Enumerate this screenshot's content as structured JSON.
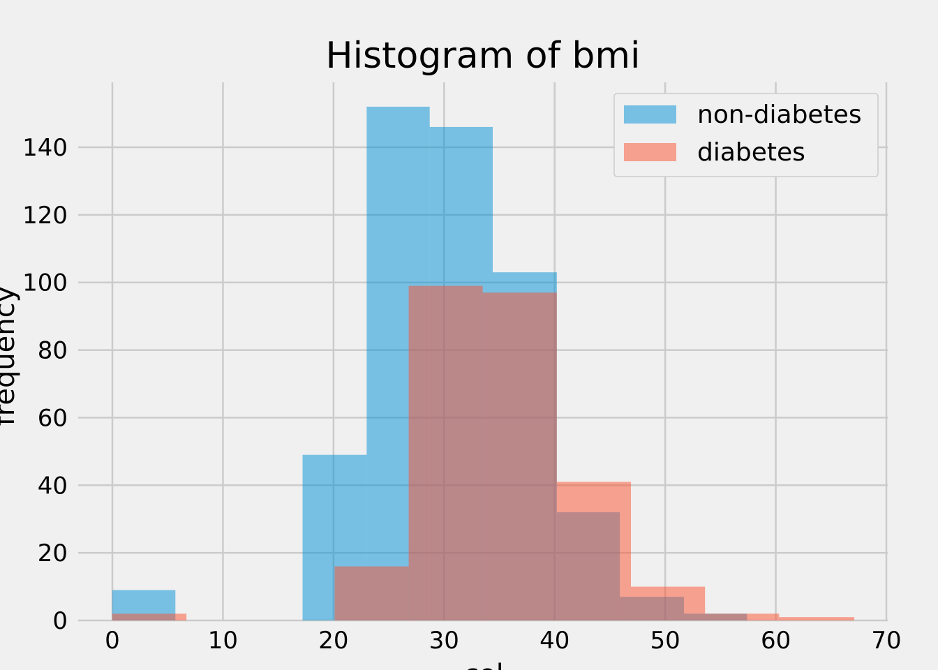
{
  "chart_data": {
    "type": "bar",
    "title": "Histogram of bmi",
    "xlabel": "col",
    "ylabel": "frequency",
    "xlim": [
      0,
      70
    ],
    "ylim": [
      0,
      158
    ],
    "xticks": [
      0,
      10,
      20,
      30,
      40,
      50,
      60,
      70
    ],
    "yticks": [
      0,
      20,
      40,
      60,
      80,
      100,
      120,
      140
    ],
    "grid": true,
    "legend_position": "top-right",
    "colors": {
      "non-diabetes": "#008fd5",
      "diabetes": "#fc4f30",
      "background": "#f0f0f0",
      "grid": "#cbcbcb"
    },
    "series": [
      {
        "name": "non-diabetes",
        "color": "#008fd5",
        "bins": [
          {
            "x0": 0.0,
            "x1": 5.7,
            "count": 9
          },
          {
            "x0": 5.7,
            "x1": 11.5,
            "count": 0
          },
          {
            "x0": 11.5,
            "x1": 17.2,
            "count": 0
          },
          {
            "x0": 17.2,
            "x1": 23.0,
            "count": 49
          },
          {
            "x0": 23.0,
            "x1": 28.7,
            "count": 152
          },
          {
            "x0": 28.7,
            "x1": 34.4,
            "count": 146
          },
          {
            "x0": 34.4,
            "x1": 40.2,
            "count": 103
          },
          {
            "x0": 40.2,
            "x1": 45.9,
            "count": 32
          },
          {
            "x0": 45.9,
            "x1": 51.7,
            "count": 7
          },
          {
            "x0": 51.7,
            "x1": 57.4,
            "count": 2
          }
        ]
      },
      {
        "name": "diabetes",
        "color": "#fc4f30",
        "bins": [
          {
            "x0": 0.0,
            "x1": 6.7,
            "count": 2
          },
          {
            "x0": 6.7,
            "x1": 13.4,
            "count": 0
          },
          {
            "x0": 13.4,
            "x1": 20.1,
            "count": 0
          },
          {
            "x0": 20.1,
            "x1": 26.8,
            "count": 16
          },
          {
            "x0": 26.8,
            "x1": 33.5,
            "count": 99
          },
          {
            "x0": 33.5,
            "x1": 40.2,
            "count": 97
          },
          {
            "x0": 40.2,
            "x1": 46.9,
            "count": 41
          },
          {
            "x0": 46.9,
            "x1": 53.6,
            "count": 10
          },
          {
            "x0": 53.6,
            "x1": 60.3,
            "count": 2
          },
          {
            "x0": 60.3,
            "x1": 67.1,
            "count": 1
          }
        ]
      }
    ]
  }
}
